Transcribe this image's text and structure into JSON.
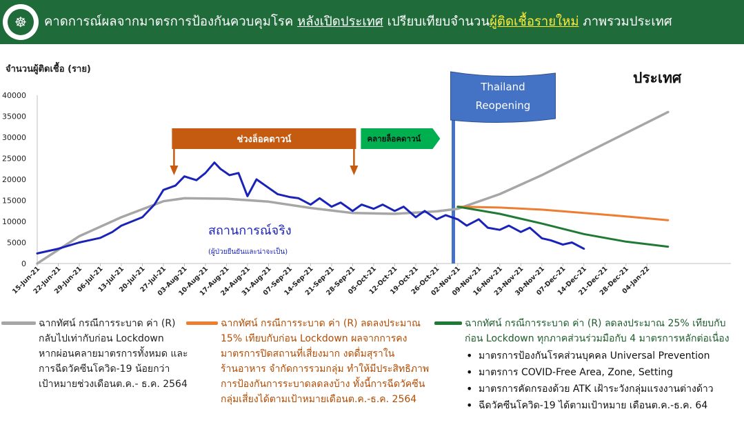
{
  "header": {
    "logo_icon": "ministry-of-public-health-seal",
    "title_part1": "คาดการณ์ผลจากมาตรการป้องกันควบคุมโรค ",
    "title_part2": "หลังเปิดประเทศ",
    "title_part3": " เปรียบเทียบจำนวน",
    "title_part4": "ผู้ติดเชื้อรายใหม่",
    "title_part5": " ภาพรวมประเทศ",
    "bg_color": "#1f6b3a"
  },
  "chart_data": {
    "type": "line",
    "title": "ประเทศ",
    "ylabel": "จำนวนผู้ติดเชื้อ (ราย)",
    "ylim": [
      0,
      40000
    ],
    "yticks": [
      "0",
      "5000",
      "10000",
      "15000",
      "20000",
      "25000",
      "30000",
      "35000",
      "40000"
    ],
    "xtick_labels": [
      "15-Jun-21",
      "22-Jun-21",
      "29-Jun-21",
      "06-Jul-21",
      "13-Jul-21",
      "20-Jul-21",
      "27-Jul-21",
      "03-Aug-21",
      "10-Aug-21",
      "17-Aug-21",
      "24-Aug-21",
      "31-Aug-21",
      "07-Sep-21",
      "14-Sep-21",
      "21-Sep-21",
      "28-Sep-21",
      "05-Oct-21",
      "12-Oct-21",
      "19-Oct-21",
      "26-Oct-21",
      "02-Nov-21",
      "09-Nov-21",
      "16-Nov-21",
      "23-Nov-21",
      "30-Nov-21",
      "07-Dec-21",
      "14-Dec-21",
      "21-Dec-21",
      "28-Dec-21",
      "04-Jan-22"
    ],
    "grid": false,
    "series": [
      {
        "name": "actual",
        "color": "#1a23b8",
        "x": [
          "2021-06-15",
          "2021-06-22",
          "2021-06-29",
          "2021-07-06",
          "2021-07-10",
          "2021-07-13",
          "2021-07-20",
          "2021-07-24",
          "2021-07-27",
          "2021-07-31",
          "2021-08-03",
          "2021-08-07",
          "2021-08-10",
          "2021-08-13",
          "2021-08-15",
          "2021-08-18",
          "2021-08-21",
          "2021-08-24",
          "2021-08-27",
          "2021-08-31",
          "2021-09-03",
          "2021-09-07",
          "2021-09-10",
          "2021-09-14",
          "2021-09-17",
          "2021-09-21",
          "2021-09-24",
          "2021-09-28",
          "2021-10-01",
          "2021-10-05",
          "2021-10-08",
          "2021-10-12",
          "2021-10-15",
          "2021-10-19",
          "2021-10-22",
          "2021-10-26",
          "2021-10-29",
          "2021-11-02",
          "2021-11-05",
          "2021-11-09",
          "2021-11-12",
          "2021-11-16",
          "2021-11-19",
          "2021-11-23",
          "2021-11-26",
          "2021-11-30",
          "2021-12-03",
          "2021-12-07",
          "2021-12-10",
          "2021-12-14"
        ],
        "y": [
          2400,
          3500,
          5000,
          6100,
          7500,
          9000,
          11000,
          14000,
          17500,
          18500,
          20700,
          19800,
          21500,
          24000,
          22500,
          21000,
          21500,
          16000,
          20000,
          18000,
          16500,
          15800,
          15500,
          14000,
          15500,
          13500,
          14500,
          12500,
          14000,
          13000,
          14000,
          12500,
          13500,
          11000,
          12500,
          10500,
          11500,
          10500,
          9000,
          10500,
          8500,
          8000,
          9000,
          7500,
          8500,
          6000,
          5500,
          4500,
          5000,
          3500
        ]
      },
      {
        "name": "scenario-1",
        "color": "#a6a6a6",
        "x": [
          "2021-06-15",
          "2021-06-29",
          "2021-07-13",
          "2021-07-27",
          "2021-08-03",
          "2021-08-17",
          "2021-08-31",
          "2021-09-14",
          "2021-09-28",
          "2021-10-12",
          "2021-10-26",
          "2021-11-02",
          "2021-11-16",
          "2021-11-30",
          "2021-12-14",
          "2021-12-28",
          "2022-01-11"
        ],
        "y": [
          0,
          6500,
          11000,
          14800,
          15500,
          15400,
          14700,
          13200,
          12000,
          11800,
          12400,
          13000,
          16500,
          21000,
          26000,
          31000,
          36000
        ]
      },
      {
        "name": "scenario-2",
        "color": "#ed7d31",
        "x": [
          "2021-11-02",
          "2021-11-16",
          "2021-11-30",
          "2021-12-14",
          "2021-12-28",
          "2022-01-11"
        ],
        "y": [
          13500,
          13300,
          12800,
          12000,
          11200,
          10300
        ]
      },
      {
        "name": "scenario-3",
        "color": "#1e7a34",
        "x": [
          "2021-11-02",
          "2021-11-16",
          "2021-11-30",
          "2021-12-14",
          "2021-12-28",
          "2022-01-11"
        ],
        "y": [
          13500,
          11800,
          9500,
          7000,
          5200,
          4000
        ]
      }
    ],
    "annotations": {
      "lockdown_label": "ช่วงล็อคดาวน์",
      "lockdown_start": "2021-07-31",
      "lockdown_end": "2021-09-28",
      "release_label": "คลายล็อคดาวน์",
      "reopening_line": "2021-11-01",
      "reopening_flag_line1": "Thailand",
      "reopening_flag_line2": "Reopening",
      "actual_label": "สถานการณ์จริง",
      "actual_sublabel": "(ผู้ป่วยยืนยันและน่าจะเป็น)"
    },
    "colors": {
      "lockdown": "#c55a11",
      "release": "#00b050",
      "flag": "#4472c4"
    }
  },
  "legend": {
    "scenario1": {
      "color": "#a6a6a6",
      "lines": [
        "ฉากทัศน์ กรณีการระบาด ค่า (R)",
        "กลับไปเท่ากับก่อน Lockdown",
        "หากผ่อนคลายมาตรการทั้งหมด และ",
        "การฉีดวัคซีนโควิด-19 น้อยกว่า",
        "เป้าหมายช่วงเดือนต.ค.- ธ.ค. 2564"
      ]
    },
    "scenario2": {
      "color": "#ed7d31",
      "lines": [
        "ฉากทัศน์ กรณีการระบาด ค่า (R) ลดลงประมาณ",
        "15% เทียบกับก่อน Lockdown ผลจากการคง",
        "มาตรการปิดสถานที่เสี่ยงมาก งดดื่มสุราใน",
        "ร้านอาหาร จำกัดการรวมกลุ่ม ทำให้มีประสิทธิภาพ",
        "การป้องกันการระบาดลดลงบ้าง ทั้งนี้การฉีดวัคซีน",
        "กลุ่มเสี่ยงได้ตามเป้าหมายเดือนต.ค.-ธ.ค. 2564"
      ]
    },
    "scenario3": {
      "color": "#1e7a34",
      "lines": [
        "ฉากทัศน์ กรณีการระบาด ค่า (R) ลดลงประมาณ 25% เทียบกับ",
        "ก่อน Lockdown ทุกภาคส่วนร่วมมือกับ 4 มาตรการหลักต่อเนื่อง"
      ],
      "bullets": [
        "มาตรการป้องกันโรคส่วนบุคคล Universal Prevention",
        "มาตรการ COVID-Free Area, Zone, Setting",
        "มาตรการคัดกรองด้วย ATK เฝ้าระวังกลุ่มแรงงานต่างด้าว",
        "ฉีดวัคซีนโควิด-19 ได้ตามเป้าหมาย เดือนต.ค.-ธ.ค. 64"
      ]
    }
  }
}
